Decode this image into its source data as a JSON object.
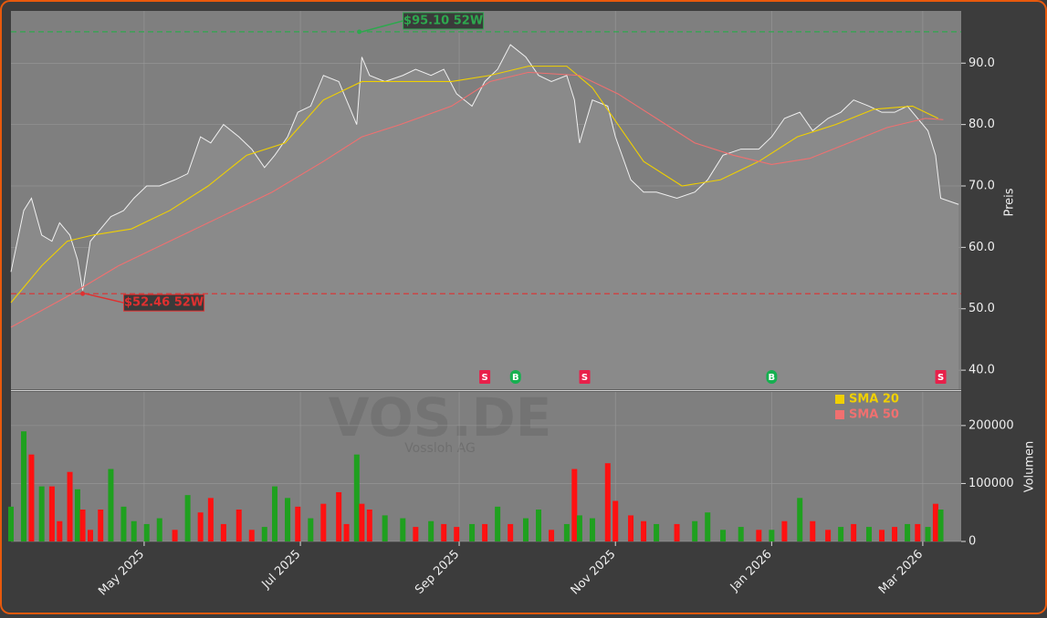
{
  "chart_data": [
    {
      "type": "line",
      "title": "VOS.DE",
      "subtitle": "Vossloh AG",
      "watermark": "forexsignale.trade",
      "ylabel": "Preis",
      "xlim": [
        -22,
        349
      ],
      "ylim": [
        36.9,
        98.5
      ],
      "yticks": [
        {
          "value": 40,
          "label": "40.0"
        },
        {
          "value": 50,
          "label": "50.0"
        },
        {
          "value": 60,
          "label": "60.0"
        },
        {
          "value": 70,
          "label": "70.0"
        },
        {
          "value": 80,
          "label": "80.0"
        },
        {
          "value": 90,
          "label": "90.0"
        }
      ],
      "grid": true,
      "color": "#f0f0f0",
      "x": [
        -22,
        -17,
        -14,
        -10,
        -6,
        -3,
        1,
        4,
        6,
        9,
        13,
        17,
        22,
        26,
        31,
        36,
        42,
        47,
        52,
        56,
        61,
        67,
        72,
        77,
        81,
        86,
        90,
        95,
        100,
        106,
        109,
        113,
        115,
        118,
        124,
        131,
        136,
        142,
        147,
        152,
        158,
        163,
        168,
        173,
        179,
        184,
        189,
        195,
        198,
        200,
        205,
        211,
        214,
        220,
        225,
        230,
        238,
        245,
        250,
        256,
        263,
        270,
        275,
        280,
        286,
        291,
        297,
        302,
        307,
        313,
        318,
        323,
        328,
        332,
        336,
        339,
        341,
        348
      ],
      "values": [
        56,
        66,
        68,
        62,
        61,
        64,
        62,
        58,
        53,
        61,
        63,
        65,
        66,
        68,
        70,
        70,
        71,
        72,
        78,
        77,
        80,
        78,
        76,
        73,
        75,
        78,
        82,
        83,
        88,
        87,
        84,
        80,
        91,
        88,
        87,
        88,
        89,
        88,
        89,
        85,
        83,
        87,
        89,
        93,
        91,
        88,
        87,
        88,
        84,
        77,
        84,
        83,
        78,
        71,
        69,
        69,
        68,
        69,
        71,
        75,
        76,
        76,
        78,
        81,
        82,
        79,
        81,
        82,
        84,
        83,
        82,
        82,
        83,
        81,
        79,
        75,
        68,
        67
      ],
      "series": [
        {
          "name": "SMA 20",
          "color": "#f0d000",
          "x": [
            -22,
            -10,
            0,
            10,
            25,
            40,
            55,
            70,
            85,
            100,
            115,
            130,
            150,
            165,
            180,
            195,
            205,
            215,
            225,
            240,
            255,
            270,
            285,
            300,
            315,
            330,
            340
          ],
          "values": [
            51,
            57,
            61,
            62,
            63,
            66,
            70,
            75,
            77,
            84,
            87,
            87,
            87,
            88,
            89.5,
            89.5,
            86,
            80,
            74,
            70,
            71,
            74,
            78,
            80,
            82.5,
            83,
            81
          ]
        },
        {
          "name": "SMA 50",
          "color": "#f07070",
          "x": [
            -22,
            0,
            20,
            40,
            60,
            80,
            100,
            115,
            130,
            150,
            165,
            180,
            200,
            215,
            230,
            245,
            260,
            275,
            290,
            305,
            320,
            335,
            342
          ],
          "values": [
            47,
            52,
            57,
            61,
            65,
            69,
            74,
            78,
            80,
            83,
            87,
            88.5,
            88,
            85,
            81,
            77,
            75,
            73.5,
            74.5,
            77,
            79.5,
            81,
            80.8
          ]
        }
      ],
      "annotations": [
        {
          "text": "$95.10 52W",
          "x": 114,
          "y": 95.1,
          "color": "#2ea84e"
        },
        {
          "text": "$52.46 52W",
          "x": 6,
          "y": 52.46,
          "color": "#e03030"
        }
      ],
      "signals": [
        {
          "x": 163,
          "label": "S",
          "color": "#e8204a"
        },
        {
          "x": 175,
          "label": "B",
          "color": "#16b050"
        },
        {
          "x": 202,
          "label": "S",
          "color": "#e8204a"
        },
        {
          "x": 275,
          "label": "B",
          "color": "#16b050"
        },
        {
          "x": 341,
          "label": "S",
          "color": "#e8204a"
        }
      ]
    },
    {
      "type": "bar",
      "ylabel": "Volumen",
      "xlim": [
        -22,
        349
      ],
      "ylim": [
        0,
        258000
      ],
      "yticks": [
        0,
        100000,
        200000
      ],
      "xticks": [
        {
          "value": 30,
          "label": "May 2025"
        },
        {
          "value": 91,
          "label": "Jul 2025"
        },
        {
          "value": 153,
          "label": "Sep 2025"
        },
        {
          "value": 214,
          "label": "Nov 2025"
        },
        {
          "value": 275,
          "label": "Jan 2026"
        },
        {
          "value": 334,
          "label": "Mar 2026"
        }
      ],
      "x": [
        -22,
        -17,
        -14,
        -10,
        -6,
        -3,
        1,
        4,
        6,
        9,
        13,
        17,
        22,
        26,
        31,
        36,
        42,
        47,
        52,
        56,
        61,
        67,
        72,
        77,
        81,
        86,
        90,
        95,
        100,
        106,
        109,
        113,
        115,
        118,
        124,
        131,
        136,
        142,
        147,
        152,
        158,
        163,
        168,
        173,
        179,
        184,
        189,
        195,
        198,
        200,
        205,
        211,
        214,
        220,
        225,
        230,
        238,
        245,
        250,
        256,
        263,
        270,
        275,
        280,
        286,
        291,
        297,
        302,
        307,
        313,
        318,
        323,
        328,
        332,
        336,
        339,
        341,
        348
      ],
      "values": [
        60000,
        190000,
        150000,
        95000,
        95000,
        35000,
        120000,
        90000,
        55000,
        20000,
        55000,
        125000,
        60000,
        35000,
        30000,
        40000,
        20000,
        80000,
        50000,
        75000,
        30000,
        55000,
        20000,
        25000,
        95000,
        75000,
        60000,
        40000,
        65000,
        85000,
        30000,
        150000,
        65000,
        55000,
        45000,
        40000,
        25000,
        35000,
        30000,
        25000,
        30000,
        30000,
        60000,
        30000,
        40000,
        55000,
        20000,
        30000,
        125000,
        45000,
        40000,
        135000,
        70000,
        45000,
        35000,
        30000,
        30000,
        35000,
        50000,
        20000,
        25000,
        20000,
        20000,
        35000,
        75000,
        35000,
        20000,
        25000,
        30000,
        25000,
        20000,
        25000,
        30000,
        30000,
        25000,
        65000,
        55000,
        null
      ],
      "colors": [
        "#1fa01f",
        "#1fa01f",
        "#ff1111",
        "#1fa01f",
        "#ff1111",
        "#ff1111",
        "#ff1111",
        "#1fa01f",
        "#ff1111",
        "#ff1111",
        "#ff1111",
        "#1fa01f",
        "#1fa01f",
        "#1fa01f",
        "#1fa01f",
        "#1fa01f",
        "#ff1111",
        "#1fa01f",
        "#ff1111",
        "#ff1111",
        "#ff1111",
        "#ff1111",
        "#ff1111",
        "#1fa01f",
        "#1fa01f",
        "#1fa01f",
        "#ff1111",
        "#1fa01f",
        "#ff1111",
        "#ff1111",
        "#ff1111",
        "#1fa01f",
        "#ff1111",
        "#ff1111",
        "#1fa01f",
        "#1fa01f",
        "#ff1111",
        "#1fa01f",
        "#ff1111",
        "#ff1111",
        "#1fa01f",
        "#ff1111",
        "#1fa01f",
        "#ff1111",
        "#1fa01f",
        "#1fa01f",
        "#ff1111",
        "#1fa01f",
        "#ff1111",
        "#1fa01f",
        "#1fa01f",
        "#ff1111",
        "#ff1111",
        "#ff1111",
        "#ff1111",
        "#1fa01f",
        "#ff1111",
        "#1fa01f",
        "#1fa01f",
        "#1fa01f",
        "#1fa01f",
        "#ff1111",
        "#1fa01f",
        "#ff1111",
        "#1fa01f",
        "#ff1111",
        "#ff1111",
        "#1fa01f",
        "#ff1111",
        "#1fa01f",
        "#ff1111",
        "#ff1111",
        "#1fa01f",
        "#ff1111",
        "#1fa01f",
        "#ff1111",
        "#1fa01f",
        null
      ]
    }
  ]
}
